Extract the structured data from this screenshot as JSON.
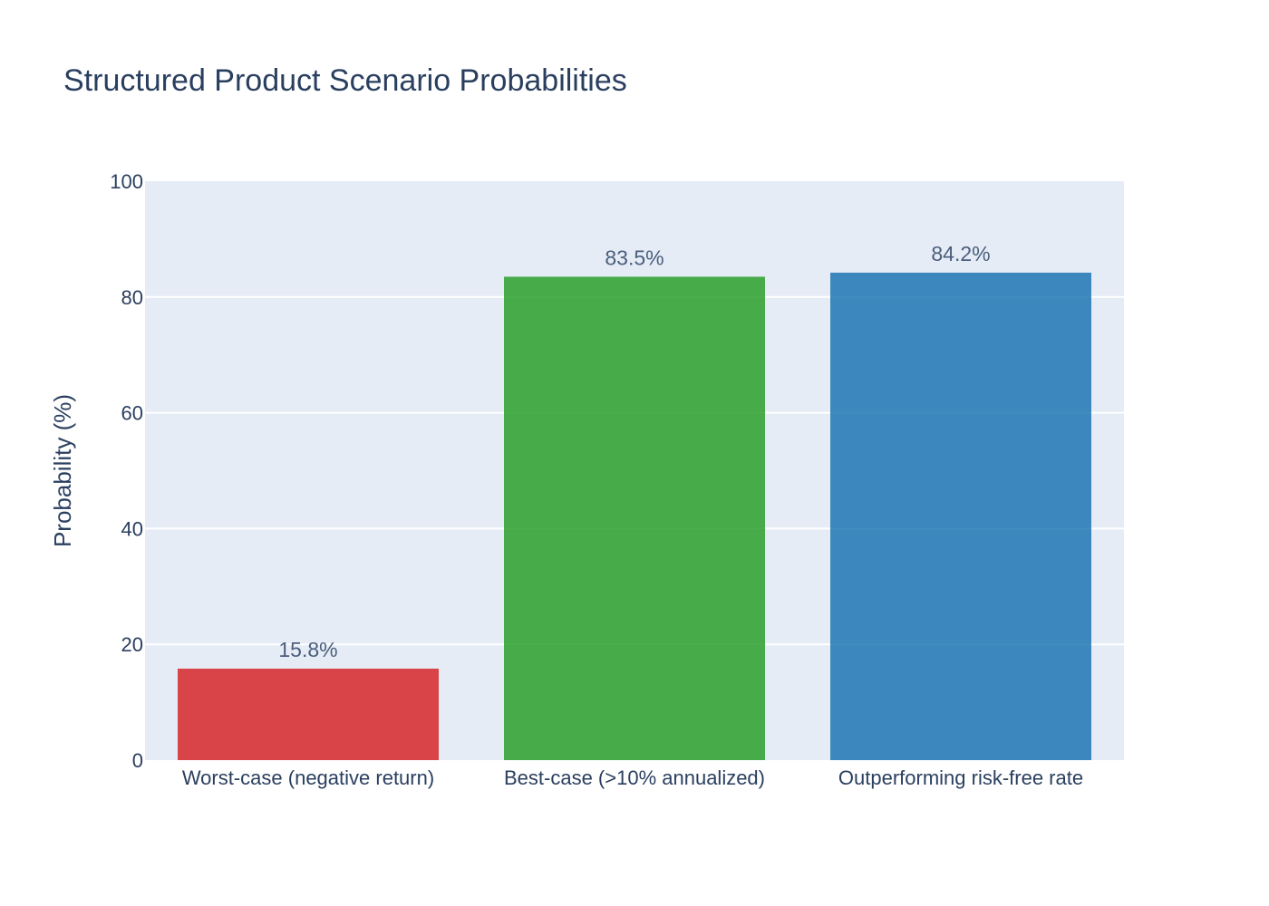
{
  "colors": {
    "text": "#2a3f5f",
    "data_label": "#4a5e7c",
    "plot_bg": "#e5ecf6",
    "grid": "#ffffff"
  },
  "chart_data": {
    "type": "bar",
    "title": "Structured Product Scenario Probabilities",
    "xlabel": "",
    "ylabel": "Probability (%)",
    "ylim": [
      0,
      100
    ],
    "yticks": [
      0,
      20,
      40,
      60,
      80,
      100
    ],
    "grid": true,
    "legend": "none",
    "categories": [
      "Worst-case (negative return)",
      "Best-case (>10% annualized)",
      "Outperforming risk-free rate"
    ],
    "values": [
      15.8,
      83.5,
      84.2
    ],
    "value_labels": [
      "15.8%",
      "83.5%",
      "84.2%"
    ],
    "bar_colors": [
      "#d62728",
      "#2ca02c",
      "#1f77b4"
    ]
  }
}
